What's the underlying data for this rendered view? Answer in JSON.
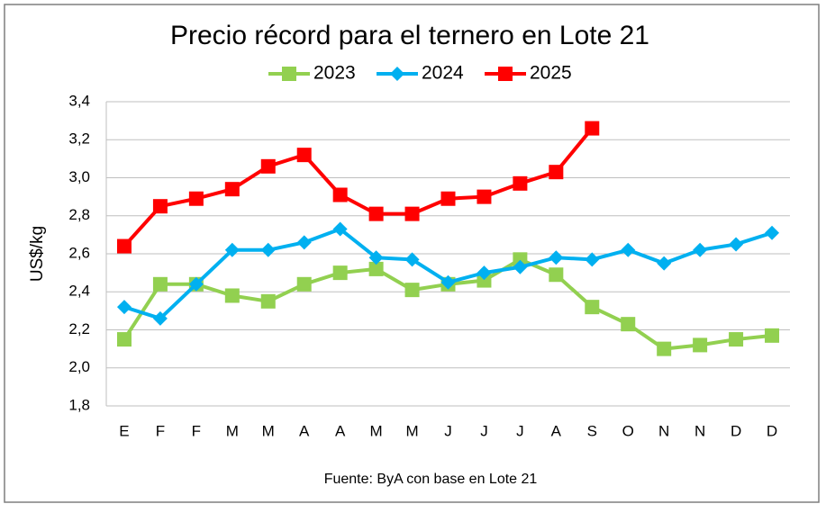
{
  "chart_data": {
    "type": "line",
    "title": "Precio récord para el ternero en Lote 21",
    "y_label": "US$/kg",
    "source": "Fuente: ByA con base en Lote 21",
    "categories": [
      "E",
      "F",
      "F",
      "M",
      "M",
      "A",
      "A",
      "M",
      "M",
      "J",
      "J",
      "J",
      "A",
      "S",
      "O",
      "N",
      "N",
      "D",
      "D"
    ],
    "series": [
      {
        "name": "2023",
        "color": "#92d050",
        "marker": "square",
        "values": [
          2.15,
          2.44,
          2.44,
          2.38,
          2.35,
          2.44,
          2.5,
          2.52,
          2.41,
          2.44,
          2.46,
          2.57,
          2.49,
          2.32,
          2.23,
          2.1,
          2.12,
          2.15,
          2.17
        ]
      },
      {
        "name": "2024",
        "color": "#00b0f0",
        "marker": "diamond",
        "values": [
          2.32,
          2.26,
          2.44,
          2.62,
          2.62,
          2.66,
          2.73,
          2.58,
          2.57,
          2.45,
          2.5,
          2.53,
          2.58,
          2.57,
          2.62,
          2.55,
          2.62,
          2.65,
          2.71
        ]
      },
      {
        "name": "2025",
        "color": "#ff0000",
        "marker": "square",
        "values": [
          2.64,
          2.85,
          2.89,
          2.94,
          3.06,
          3.12,
          2.91,
          2.81,
          2.81,
          2.89,
          2.9,
          2.97,
          3.03,
          3.26,
          null,
          null,
          null,
          null,
          null
        ]
      }
    ],
    "ylim": [
      1.8,
      3.4
    ],
    "yticks": [
      {
        "value": 1.8,
        "label": "1,8"
      },
      {
        "value": 2.0,
        "label": "2,0"
      },
      {
        "value": 2.2,
        "label": "2,2"
      },
      {
        "value": 2.4,
        "label": "2,4"
      },
      {
        "value": 2.6,
        "label": "2,6"
      },
      {
        "value": 2.8,
        "label": "2,8"
      },
      {
        "value": 3.0,
        "label": "3,0"
      },
      {
        "value": 3.2,
        "label": "3,2"
      },
      {
        "value": 3.4,
        "label": "3,4"
      }
    ],
    "grid": true,
    "legend": "top"
  }
}
